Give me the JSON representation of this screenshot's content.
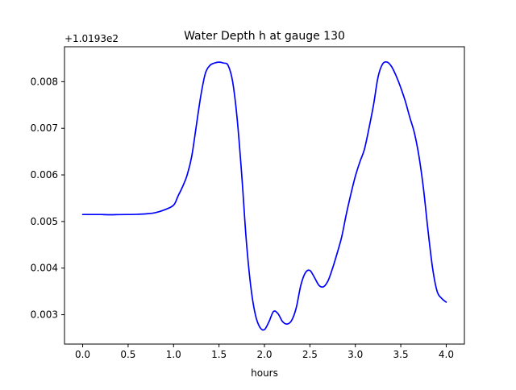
{
  "chart_data": {
    "type": "line",
    "title": "Water Depth h at gauge 130",
    "xlabel": "hours",
    "ylabel": "",
    "offset_text": "+1.0193e2",
    "xlim": [
      -0.2,
      4.2
    ],
    "ylim": [
      0.00237,
      0.00875
    ],
    "xticks": [
      0.0,
      0.5,
      1.0,
      1.5,
      2.0,
      2.5,
      3.0,
      3.5,
      4.0
    ],
    "xtick_labels": [
      "0.0",
      "0.5",
      "1.0",
      "1.5",
      "2.0",
      "2.5",
      "3.0",
      "3.5",
      "4.0"
    ],
    "yticks": [
      0.003,
      0.004,
      0.005,
      0.006,
      0.007,
      0.008
    ],
    "ytick_labels": [
      "0.003",
      "0.004",
      "0.005",
      "0.006",
      "0.007",
      "0.008"
    ],
    "grid": false,
    "line_color": "#0000ff",
    "series": [
      {
        "x": [
          0.0,
          0.1,
          0.2,
          0.3,
          0.4,
          0.5,
          0.6,
          0.7,
          0.8,
          0.9,
          1.0,
          1.05,
          1.1,
          1.15,
          1.2,
          1.25,
          1.3,
          1.35,
          1.4,
          1.45,
          1.5,
          1.55,
          1.6,
          1.65,
          1.7,
          1.75,
          1.8,
          1.85,
          1.9,
          1.95,
          2.0,
          2.05,
          2.1,
          2.15,
          2.2,
          2.25,
          2.3,
          2.35,
          2.4,
          2.45,
          2.5,
          2.55,
          2.6,
          2.65,
          2.7,
          2.75,
          2.8,
          2.85,
          2.9,
          2.95,
          3.0,
          3.05,
          3.1,
          3.15,
          3.2,
          3.25,
          3.3,
          3.35,
          3.4,
          3.45,
          3.5,
          3.55,
          3.6,
          3.65,
          3.7,
          3.75,
          3.8,
          3.85,
          3.9,
          3.95,
          4.0
        ],
        "y": [
          0.00515,
          0.00515,
          0.00515,
          0.005145,
          0.005148,
          0.00515,
          0.005155,
          0.005165,
          0.00519,
          0.00525,
          0.00535,
          0.00555,
          0.00575,
          0.006,
          0.0064,
          0.00705,
          0.0077,
          0.00818,
          0.00835,
          0.0084,
          0.00842,
          0.0084,
          0.00835,
          0.008,
          0.0072,
          0.006,
          0.0046,
          0.0036,
          0.003,
          0.00273,
          0.00268,
          0.00285,
          0.00307,
          0.00302,
          0.00285,
          0.0028,
          0.00288,
          0.00315,
          0.00363,
          0.0039,
          0.00395,
          0.0038,
          0.00363,
          0.0036,
          0.00373,
          0.004,
          0.00432,
          0.00467,
          0.00515,
          0.00558,
          0.00597,
          0.00628,
          0.00655,
          0.007,
          0.0075,
          0.0081,
          0.00838,
          0.00842,
          0.00832,
          0.00812,
          0.00787,
          0.00758,
          0.00723,
          0.0069,
          0.0064,
          0.0057,
          0.0048,
          0.004,
          0.0035,
          0.00335,
          0.00327
        ]
      }
    ]
  }
}
